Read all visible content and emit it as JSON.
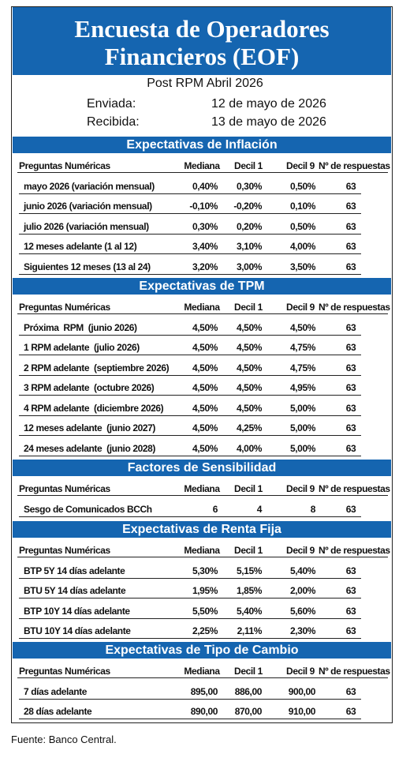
{
  "header": {
    "title_lines": [
      "Encuesta de Operadores",
      "Financieros (EOF)"
    ]
  },
  "info": {
    "edition": "Post RPM Abril 2026",
    "sent_label": "Enviada:",
    "sent_date": "12 de mayo de 2026",
    "received_label": "Recibida:",
    "received_date": "13 de mayo de 2026"
  },
  "sections": [
    {
      "title": "Expectativas de Inflación",
      "columns": [
        "Preguntas Numéricas",
        "Mediana",
        "Decil 1",
        "Decil 9",
        "Nº de respuestas"
      ],
      "rows": [
        [
          "mayo 2026 (variación mensual)",
          "0,40%",
          "0,30%",
          "0,50%",
          "63"
        ],
        [
          "junio 2026 (variación mensual)",
          "-0,10%",
          "-0,20%",
          "0,10%",
          "63"
        ],
        [
          "julio 2026 (variación mensual)",
          "0,30%",
          "0,20%",
          "0,50%",
          "63"
        ],
        [
          "12 meses adelante (1 al 12)",
          "3,40%",
          "3,10%",
          "4,00%",
          "63"
        ],
        [
          "Siguientes 12 meses (13 al 24)",
          "3,20%",
          "3,00%",
          "3,50%",
          "63"
        ]
      ]
    },
    {
      "title": "Expectativas de TPM",
      "columns": [
        "Preguntas Numéricas",
        "Mediana",
        "Decil 1",
        "Decil 9",
        "Nº de respuestas"
      ],
      "rows": [
        [
          "Próxima  RPM  (junio 2026)",
          "4,50%",
          "4,50%",
          "4,50%",
          "63"
        ],
        [
          "1 RPM adelante  (julio 2026)",
          "4,50%",
          "4,50%",
          "4,75%",
          "63"
        ],
        [
          "2 RPM adelante  (septiembre 2026)",
          "4,50%",
          "4,50%",
          "4,75%",
          "63"
        ],
        [
          "3 RPM adelante  (octubre 2026)",
          "4,50%",
          "4,50%",
          "4,95%",
          "63"
        ],
        [
          "4 RPM adelante  (diciembre 2026)",
          "4,50%",
          "4,50%",
          "5,00%",
          "63"
        ],
        [
          "12 meses adelante  (junio 2027)",
          "4,50%",
          "4,25%",
          "5,00%",
          "63"
        ],
        [
          "24 meses adelante  (junio 2028)",
          "4,50%",
          "4,00%",
          "5,00%",
          "63"
        ]
      ]
    },
    {
      "title": "Factores de Sensibilidad",
      "columns": [
        "Preguntas Numéricas",
        "Mediana",
        "Decil 1",
        "Decil 9",
        "Nº de respuestas"
      ],
      "rows": [
        [
          "Sesgo de Comunicados BCCh",
          "6",
          "4",
          "8",
          "63"
        ]
      ]
    },
    {
      "title": "Expectativas  de Renta Fija",
      "columns": [
        "Preguntas Numéricas",
        "Mediana",
        "Decil 1",
        "Decil 9",
        "Nº de respuestas"
      ],
      "rows": [
        [
          "BTP 5Y 14 días adelante",
          "5,30%",
          "5,15%",
          "5,40%",
          "63"
        ],
        [
          "BTU 5Y 14 días adelante",
          "1,95%",
          "1,85%",
          "2,00%",
          "63"
        ],
        [
          "BTP 10Y 14 días adelante",
          "5,50%",
          "5,40%",
          "5,60%",
          "63"
        ],
        [
          "BTU 10Y 14 días adelante",
          "2,25%",
          "2,11%",
          "2,30%",
          "63"
        ]
      ]
    },
    {
      "title": "Expectativas  de Tipo de Cambio",
      "columns": [
        "Preguntas Numéricas",
        "Mediana",
        "Decil 1",
        "Decil 9",
        "Nº de respuestas"
      ],
      "rows": [
        [
          "7 días adelante",
          "895,00",
          "886,00",
          "900,00",
          "63"
        ],
        [
          "28 días adelante",
          "890,00",
          "870,00",
          "910,00",
          "63"
        ]
      ]
    }
  ],
  "footer": {
    "source": "Fuente: Banco Central."
  }
}
